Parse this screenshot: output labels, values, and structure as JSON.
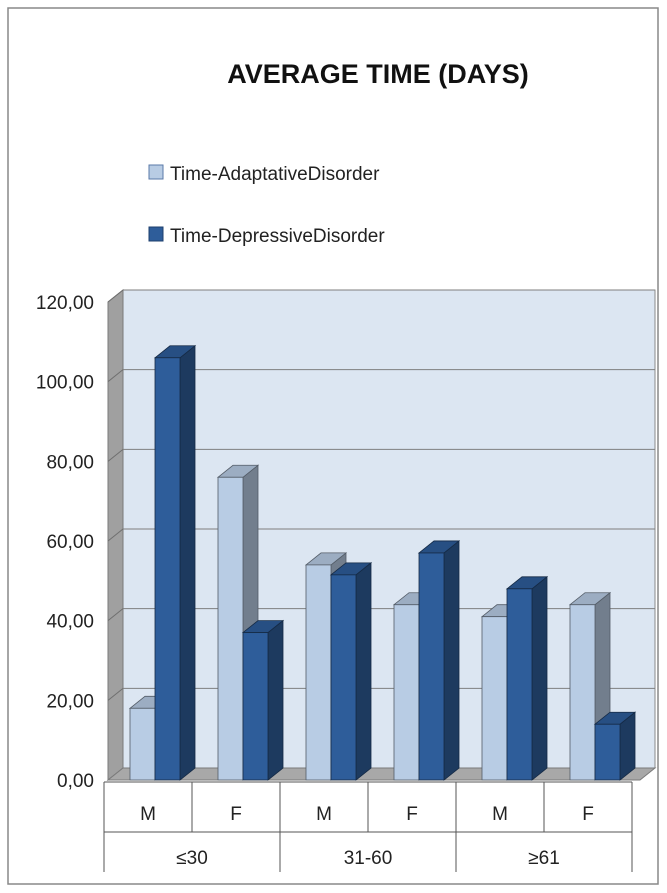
{
  "chart_data": {
    "type": "bar",
    "title": "AVERAGE TIME (DAYS)",
    "xlabel": "",
    "ylabel": "",
    "ylim": [
      0,
      120
    ],
    "yticks": [
      "0,00",
      "20,00",
      "40,00",
      "60,00",
      "80,00",
      "100,00",
      "120,00"
    ],
    "grid": true,
    "legend_position": "top-left",
    "categories": [
      "M",
      "F",
      "M",
      "F",
      "M",
      "F"
    ],
    "groups": [
      {
        "label": "≤30"
      },
      {
        "label": "31-60"
      },
      {
        "label": "≥61"
      }
    ],
    "series": [
      {
        "name": "Time-AdaptativeDisorder",
        "color": "#b8cce4",
        "values": [
          18,
          76,
          54,
          44,
          41,
          44
        ]
      },
      {
        "name": "Time-DepressiveDisorder",
        "color": "#2e5d9a",
        "values": [
          106,
          37,
          51.5,
          57,
          48,
          14
        ]
      }
    ]
  }
}
